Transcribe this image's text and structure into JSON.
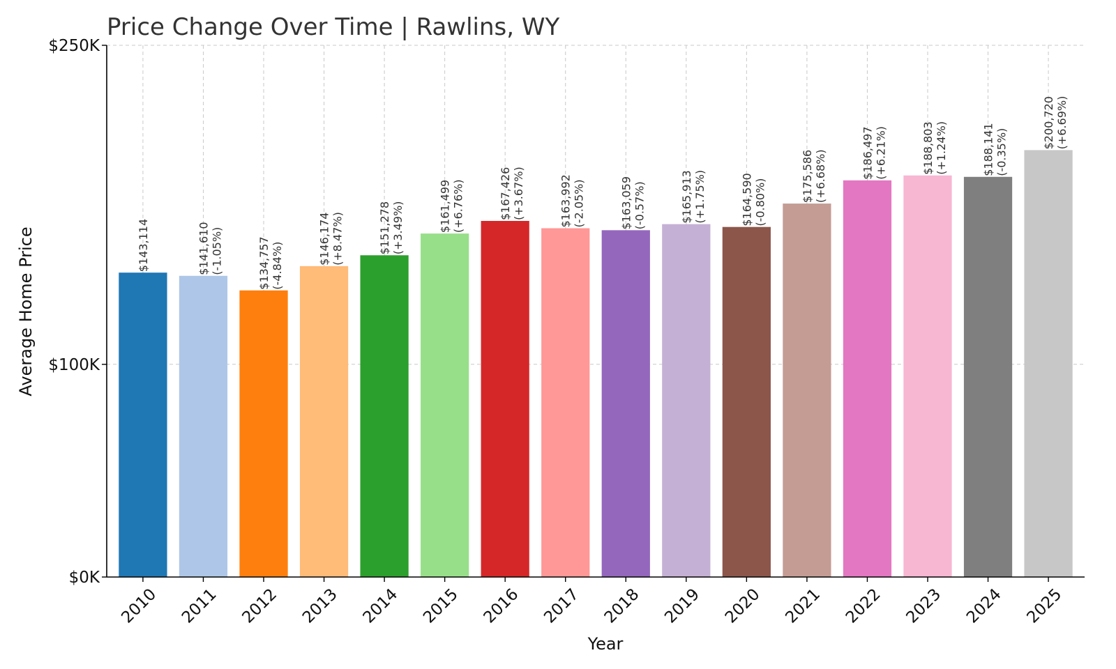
{
  "chart_data": {
    "type": "bar",
    "title": "Price Change Over Time | Rawlins, WY",
    "xlabel": "Year",
    "ylabel": "Average Home Price",
    "categories": [
      "2010",
      "2011",
      "2012",
      "2013",
      "2014",
      "2015",
      "2016",
      "2017",
      "2018",
      "2019",
      "2020",
      "2021",
      "2022",
      "2023",
      "2024",
      "2025"
    ],
    "values": [
      143114,
      141610,
      134757,
      146174,
      151278,
      161499,
      167426,
      163992,
      163059,
      165913,
      164590,
      175586,
      186497,
      188803,
      188141,
      200720
    ],
    "value_labels": [
      "$143,114",
      "$141,610",
      "$134,757",
      "$146,174",
      "$151,278",
      "$161,499",
      "$167,426",
      "$163,992",
      "$163,059",
      "$165,913",
      "$164,590",
      "$175,586",
      "$186,497",
      "$188,803",
      "$188,141",
      "$200,720"
    ],
    "change_labels": [
      "",
      "(-1.05%)",
      "(-4.84%)",
      "(+8.47%)",
      "(+3.49%)",
      "(+6.76%)",
      "(+3.67%)",
      "(-2.05%)",
      "(-0.57%)",
      "(+1.75%)",
      "(-0.80%)",
      "(+6.68%)",
      "(+6.21%)",
      "(+1.24%)",
      "(-0.35%)",
      "(+6.69%)"
    ],
    "colors": [
      "#1f77b4",
      "#aec7e8",
      "#ff7f0e",
      "#ffbb78",
      "#2ca02c",
      "#98df8a",
      "#d62728",
      "#ff9896",
      "#9467bd",
      "#c5b0d5",
      "#8c564b",
      "#c49c94",
      "#e377c2",
      "#f7b6d2",
      "#7f7f7f",
      "#c7c7c7"
    ],
    "ylim": [
      0,
      250000
    ],
    "yticks": [
      {
        "value": 0,
        "label": "$0K"
      },
      {
        "value": 100000,
        "label": "$100K"
      },
      {
        "value": 250000,
        "label": "$250K"
      }
    ],
    "grid": true,
    "legend": "none"
  }
}
